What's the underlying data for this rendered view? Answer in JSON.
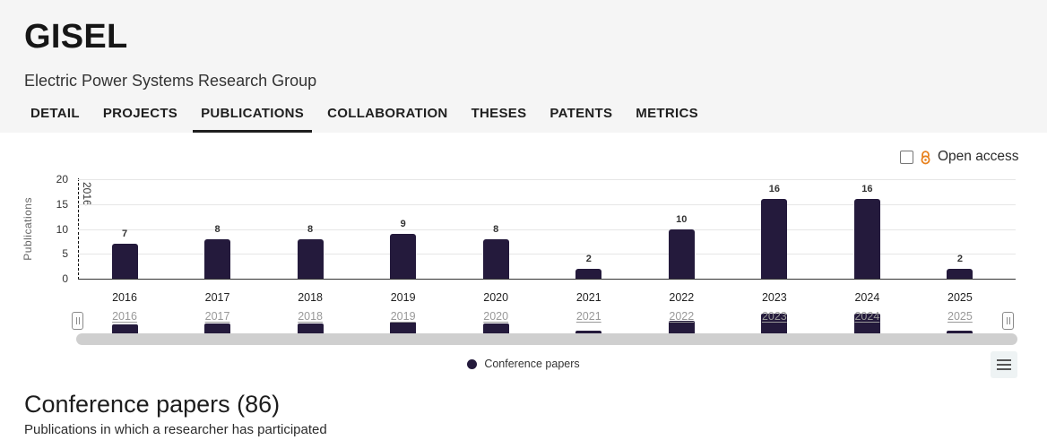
{
  "header": {
    "title": "GISEL",
    "subtitle": "Electric Power Systems Research Group",
    "tabs": [
      {
        "label": "DETAIL",
        "active": false
      },
      {
        "label": "PROJECTS",
        "active": false
      },
      {
        "label": "PUBLICATIONS",
        "active": true
      },
      {
        "label": "COLLABORATION",
        "active": false
      },
      {
        "label": "THESES",
        "active": false
      },
      {
        "label": "PATENTS",
        "active": false
      },
      {
        "label": "METRICS",
        "active": false
      }
    ]
  },
  "chart": {
    "open_access": {
      "label": "Open access",
      "checked": false,
      "icon": "open-access-lock-icon",
      "icon_color": "#e8821e"
    },
    "y_axis_title": "Publications",
    "plotline_label": "2016",
    "legend": {
      "label": "Conference papers",
      "marker_color": "#241a3c"
    },
    "menu_icon": "hamburger-menu-icon",
    "navigator_handle_icon": "grip-handle-icon"
  },
  "chart_data": {
    "type": "bar",
    "title": "",
    "categories": [
      "2016",
      "2017",
      "2018",
      "2019",
      "2020",
      "2021",
      "2022",
      "2023",
      "2024",
      "2025"
    ],
    "series": [
      {
        "name": "Conference papers",
        "values": [
          7,
          8,
          8,
          9,
          8,
          2,
          10,
          16,
          16,
          2
        ],
        "color": "#241a3c"
      }
    ],
    "xlabel": "",
    "ylabel": "Publications",
    "ylim": [
      0,
      20
    ],
    "y_ticks": [
      0,
      5,
      10,
      15,
      20
    ],
    "grid": true,
    "legend_position": "bottom",
    "navigator": true
  },
  "section": {
    "heading": "Conference papers (86)",
    "subheading": "Publications in which a researcher has participated"
  }
}
